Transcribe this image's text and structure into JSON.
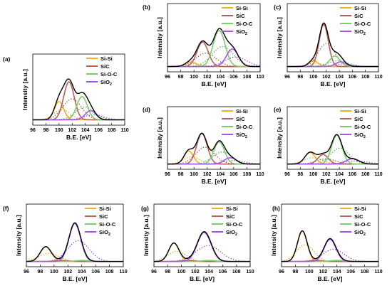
{
  "chart_data": [
    {
      "panel": "(a)",
      "type": "line",
      "xlabel": "B.E. [eV]",
      "ylabel": "Intensity [a.u.]",
      "xlim": [
        96,
        110
      ],
      "ylim": [
        0,
        1
      ],
      "xticks": [
        "96",
        "98",
        "100",
        "102",
        "104",
        "106",
        "108",
        "110"
      ],
      "legend": [
        "Si-Si",
        "SiC",
        "Si-O-C",
        "SiO2"
      ],
      "legend_position": "top-right",
      "grid": false,
      "series": [
        {
          "name": "Si-Si",
          "center": 100.0,
          "height": 0.3,
          "width": 0.7
        },
        {
          "name": "SiC",
          "center": 101.5,
          "height": 0.62,
          "width": 0.8
        },
        {
          "name": "Si-O-C",
          "center": 103.5,
          "height": 0.38,
          "width": 0.8
        },
        {
          "name": "SiO2",
          "center": 104.8,
          "height": 0.15,
          "width": 0.8
        }
      ],
      "envelope_peak": 0.92
    },
    {
      "panel": "(b)",
      "type": "line",
      "xlabel": "B.E. [eV]",
      "ylabel": "Intensity [a.u.]",
      "xlim": [
        96,
        110
      ],
      "ylim": [
        0,
        1
      ],
      "xticks": [
        "96",
        "98",
        "100",
        "102",
        "104",
        "106",
        "108",
        "110"
      ],
      "legend": [
        "Si-Si",
        "SiC",
        "Si-O-C",
        "SiO2"
      ],
      "legend_position": "top-right",
      "grid": false,
      "series": [
        {
          "name": "Si-Si",
          "center": 99.5,
          "height": 0.08,
          "width": 0.8
        },
        {
          "name": "SiC",
          "center": 101.3,
          "height": 0.42,
          "width": 0.85
        },
        {
          "name": "Si-O-C",
          "center": 103.8,
          "height": 0.62,
          "width": 0.9
        },
        {
          "name": "SiO2",
          "center": 105.8,
          "height": 0.3,
          "width": 0.9
        }
      ],
      "envelope_peak": 0.88
    },
    {
      "panel": "(c)",
      "type": "line",
      "xlabel": "B.E. [eV]",
      "ylabel": "Intensity [a.u.]",
      "xlim": [
        96,
        110
      ],
      "ylim": [
        0,
        1
      ],
      "xticks": [
        "96",
        "98",
        "100",
        "102",
        "104",
        "106",
        "108",
        "110"
      ],
      "legend": [
        "Si-Si",
        "SiC",
        "Si-O-C",
        "SiO2"
      ],
      "legend_position": "top-right",
      "grid": false,
      "series": [
        {
          "name": "Si-Si",
          "center": 100.0,
          "height": 0.1,
          "width": 0.7
        },
        {
          "name": "SiC",
          "center": 101.6,
          "height": 0.72,
          "width": 0.7
        },
        {
          "name": "Si-O-C",
          "center": 103.3,
          "height": 0.18,
          "width": 0.8
        },
        {
          "name": "SiO2",
          "center": 104.2,
          "height": 0.08,
          "width": 0.8
        }
      ],
      "envelope_peak": 0.95
    },
    {
      "panel": "(d)",
      "type": "line",
      "xlabel": "B.E. [eV]",
      "ylabel": "Intensity [a.u.]",
      "xlim": [
        96,
        110
      ],
      "ylim": [
        0,
        1
      ],
      "xticks": [
        "96",
        "98",
        "100",
        "102",
        "104",
        "106",
        "108",
        "110"
      ],
      "legend": [
        "Si-Si",
        "SiC",
        "Si-O-C",
        "SiO2"
      ],
      "legend_position": "top-right",
      "grid": false,
      "series": [
        {
          "name": "Si-Si",
          "center": 99.2,
          "height": 0.25,
          "width": 0.7
        },
        {
          "name": "SiC",
          "center": 101.2,
          "height": 0.58,
          "width": 0.8
        },
        {
          "name": "Si-O-C",
          "center": 103.8,
          "height": 0.42,
          "width": 0.8
        },
        {
          "name": "SiO2",
          "center": 105.5,
          "height": 0.12,
          "width": 0.9
        }
      ],
      "envelope_peak": 0.88
    },
    {
      "panel": "(e)",
      "type": "line",
      "xlabel": "B.E. [eV]",
      "ylabel": "Intensity [a.u.]",
      "xlim": [
        96,
        110
      ],
      "ylim": [
        0,
        1
      ],
      "xticks": [
        "96",
        "98",
        "100",
        "102",
        "104",
        "106",
        "108",
        "110"
      ],
      "legend": [
        "Si-Si",
        "SiC",
        "Si-O-C",
        "SiO2"
      ],
      "legend_position": "top-right",
      "grid": false,
      "series": [
        {
          "name": "Si-Si",
          "center": 99.5,
          "height": 0.22,
          "width": 0.8
        },
        {
          "name": "SiC",
          "center": 101.5,
          "height": 0.18,
          "width": 0.8
        },
        {
          "name": "Si-O-C",
          "center": 103.6,
          "height": 0.55,
          "width": 0.8
        },
        {
          "name": "SiO2",
          "center": 106.0,
          "height": 0.1,
          "width": 1.0
        }
      ],
      "envelope_peak": 0.72
    },
    {
      "panel": "(f)",
      "type": "line",
      "xlabel": "B.E. [eV]",
      "ylabel": "Intensity [a.u.]",
      "xlim": [
        96,
        110
      ],
      "ylim": [
        0,
        1
      ],
      "xticks": [
        "96",
        "98",
        "100",
        "102",
        "104",
        "106",
        "108",
        "110"
      ],
      "legend": [
        "Si-Si",
        "SiC",
        "Si-O-C",
        "SiO2"
      ],
      "legend_position": "top-right",
      "grid": false,
      "series": [
        {
          "name": "Si-Si",
          "center": 98.8,
          "height": 0.28,
          "width": 0.8
        },
        {
          "name": "SiC",
          "center": 101.0,
          "height": 0.02,
          "width": 1.0
        },
        {
          "name": "Si-O-C",
          "center": 104.0,
          "height": 0.02,
          "width": 1.0
        },
        {
          "name": "SiO2",
          "center": 103.0,
          "height": 0.72,
          "width": 0.85
        }
      ],
      "envelope_peak": 0.95
    },
    {
      "panel": "(g)",
      "type": "line",
      "xlabel": "B.E. [eV]",
      "ylabel": "Intensity [a.u.]",
      "xlim": [
        96,
        110
      ],
      "ylim": [
        0,
        1
      ],
      "xticks": [
        "96",
        "98",
        "100",
        "102",
        "104",
        "106",
        "108",
        "110"
      ],
      "legend": [
        "Si-Si",
        "SiC",
        "Si-O-C",
        "SiO2"
      ],
      "legend_position": "top-right",
      "grid": false,
      "series": [
        {
          "name": "Si-Si",
          "center": 98.9,
          "height": 0.35,
          "width": 0.75
        },
        {
          "name": "SiC",
          "center": 101.0,
          "height": 0.02,
          "width": 1.0
        },
        {
          "name": "Si-O-C",
          "center": 104.0,
          "height": 0.02,
          "width": 1.0
        },
        {
          "name": "SiO2",
          "center": 103.3,
          "height": 0.55,
          "width": 1.0
        }
      ],
      "envelope_peak": 0.72
    },
    {
      "panel": "(h)",
      "type": "line",
      "xlabel": "B.E. [eV]",
      "ylabel": "Intensity [a.u.]",
      "xlim": [
        96,
        110
      ],
      "ylim": [
        0,
        1
      ],
      "xticks": [
        "96",
        "98",
        "100",
        "102",
        "104",
        "106",
        "108",
        "110"
      ],
      "legend": [
        "Si-Si",
        "SiC",
        "Si-O-C",
        "SiO2"
      ],
      "legend_position": "top-right",
      "grid": false,
      "series": [
        {
          "name": "Si-Si",
          "center": 99.0,
          "height": 0.58,
          "width": 0.7
        },
        {
          "name": "SiC",
          "center": 101.0,
          "height": 0.02,
          "width": 1.0
        },
        {
          "name": "Si-O-C",
          "center": 104.0,
          "height": 0.02,
          "width": 1.0
        },
        {
          "name": "SiO2",
          "center": 103.0,
          "height": 0.42,
          "width": 0.85
        }
      ],
      "envelope_peak": 0.68
    }
  ],
  "colors": {
    "Si-Si": "#F2B21E",
    "SiC": "#B4635A",
    "Si-O-C": "#7DCB6E",
    "SiO2": "#A855E8",
    "envelope": "#000000",
    "dotted": [
      "#C89A0C",
      "#A0332A",
      "#2E9A2E",
      "#6A2FB8"
    ]
  }
}
